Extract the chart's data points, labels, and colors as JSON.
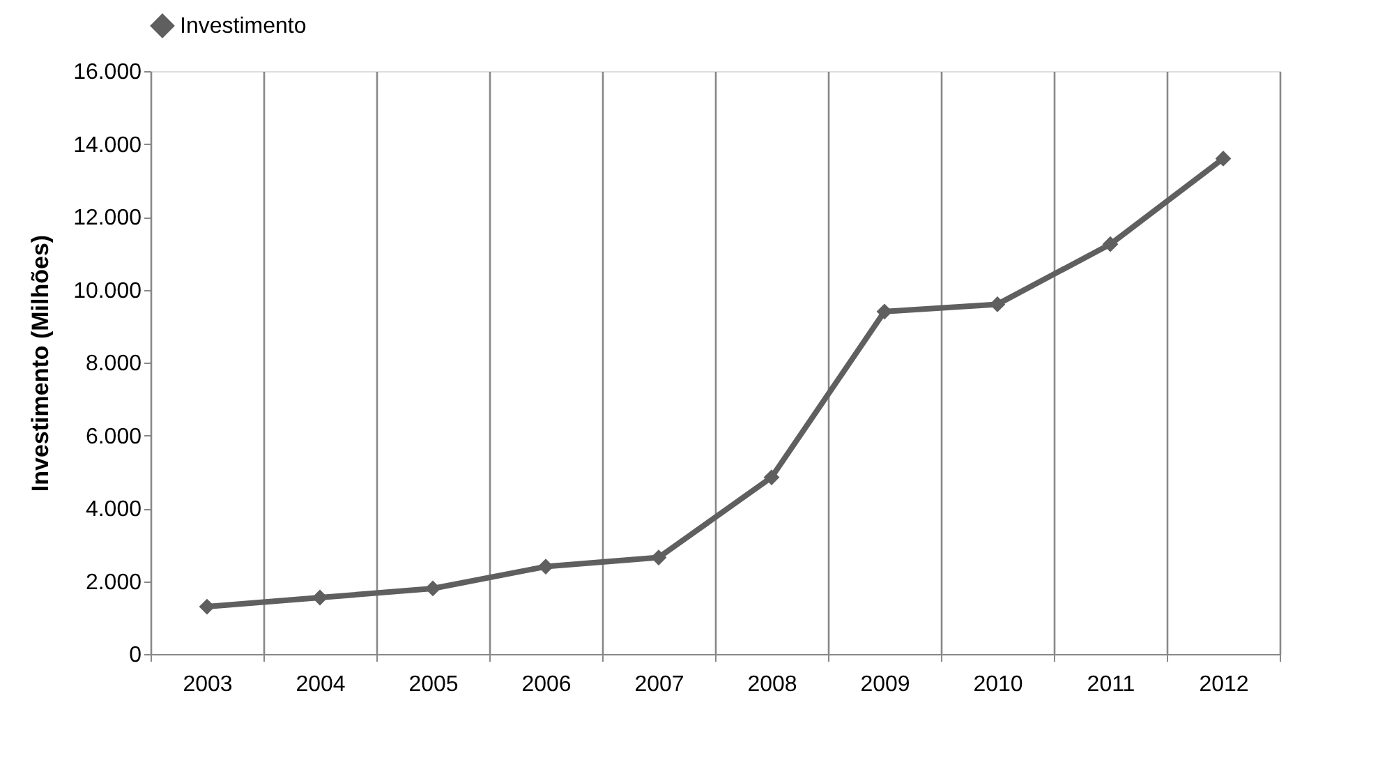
{
  "chart_data": {
    "type": "line",
    "ylabel": "Investimento (Milhões)",
    "categories": [
      "2003",
      "2004",
      "2005",
      "2006",
      "2007",
      "2008",
      "2009",
      "2010",
      "2011",
      "2012"
    ],
    "series": [
      {
        "name": "Investimento",
        "color": "#5f5f5f",
        "values": [
          1300,
          1550,
          1800,
          2400,
          2650,
          4850,
          9400,
          9600,
          11250,
          13600
        ]
      }
    ],
    "ylim": [
      0,
      16000
    ],
    "yticks": [
      {
        "value": 0,
        "label": "0"
      },
      {
        "value": 2000,
        "label": "2.000"
      },
      {
        "value": 4000,
        "label": "4.000"
      },
      {
        "value": 6000,
        "label": "6.000"
      },
      {
        "value": 8000,
        "label": "8.000"
      },
      {
        "value": 10000,
        "label": "10.000"
      },
      {
        "value": 12000,
        "label": "12.000"
      },
      {
        "value": 14000,
        "label": "14.000"
      },
      {
        "value": 16000,
        "label": "16.000"
      }
    ],
    "grid": "x",
    "legend": "top",
    "marker": "diamond",
    "line_style": "solid"
  }
}
